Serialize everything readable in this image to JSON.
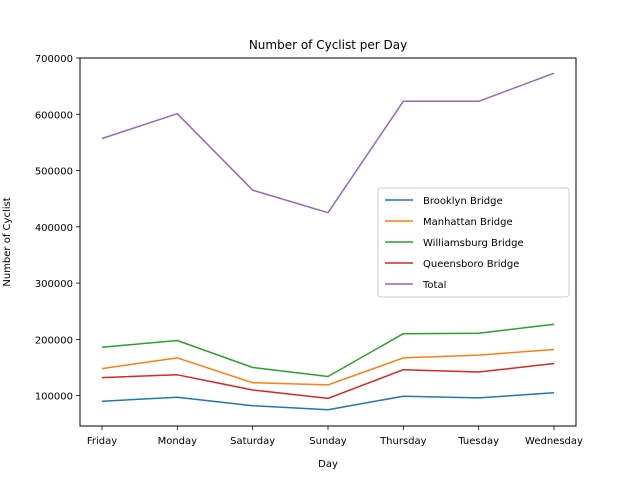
{
  "chart_data": {
    "type": "line",
    "title": "Number of Cyclist per Day",
    "xlabel": "Day",
    "ylabel": "Number of Cyclist",
    "categories": [
      "Friday",
      "Monday",
      "Saturday",
      "Sunday",
      "Thursday",
      "Tuesday",
      "Wednesday"
    ],
    "yticks": [
      100000,
      200000,
      300000,
      400000,
      500000,
      600000,
      700000
    ],
    "ylim": [
      46000,
      700000
    ],
    "grid": false,
    "legend_position": "center-right",
    "series": [
      {
        "name": "Brooklyn Bridge",
        "color": "#1f77b4",
        "values": [
          90000,
          97000,
          82000,
          75000,
          99000,
          96000,
          105000
        ]
      },
      {
        "name": "Manhattan Bridge",
        "color": "#ff7f0e",
        "values": [
          148000,
          167000,
          123000,
          119000,
          167000,
          172000,
          182000
        ]
      },
      {
        "name": "Williamsburg Bridge",
        "color": "#2ca02c",
        "values": [
          186000,
          198000,
          150000,
          134000,
          210000,
          211000,
          227000
        ]
      },
      {
        "name": "Queensboro Bridge",
        "color": "#d62728",
        "values": [
          132000,
          137000,
          110000,
          95000,
          146000,
          142000,
          157000
        ]
      },
      {
        "name": "Total",
        "color": "#9467bd",
        "values": [
          557000,
          601000,
          465000,
          425000,
          623000,
          623000,
          673000
        ]
      }
    ]
  }
}
